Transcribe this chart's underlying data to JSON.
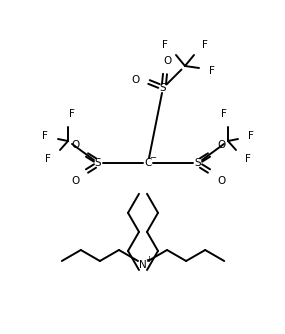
{
  "bg_color": "#ffffff",
  "line_color": "#000000",
  "text_color": "#000000",
  "lw": 1.4,
  "font_size": 7.5,
  "figsize": [
    2.85,
    3.34
  ],
  "dpi": 100,
  "xlim": [
    0,
    285
  ],
  "ylim": [
    0,
    334
  ]
}
